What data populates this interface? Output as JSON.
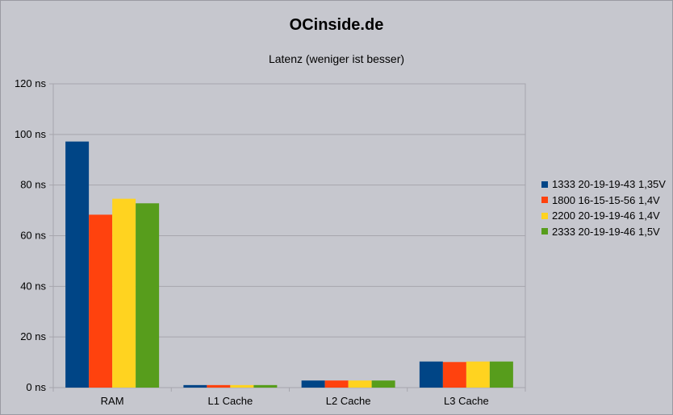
{
  "chart_data": {
    "type": "bar",
    "title": "OCinside.de",
    "subtitle": "Latenz (weniger ist besser)",
    "categories": [
      "RAM",
      "L1 Cache",
      "L2 Cache",
      "L3 Cache"
    ],
    "ylim": [
      0,
      120
    ],
    "yticks": [
      0,
      20,
      40,
      60,
      80,
      100,
      120
    ],
    "ytick_labels": [
      "0 ns",
      "20 ns",
      "40 ns",
      "60 ns",
      "80 ns",
      "100 ns",
      "120 ns"
    ],
    "grid": true,
    "legend_position": "right",
    "series": [
      {
        "name": "1333 20-19-19-43 1,35V",
        "color": "#004586",
        "values": [
          97.2,
          1.0,
          2.8,
          10.3
        ]
      },
      {
        "name": "1800 16-15-15-56 1,4V",
        "color": "#ff420e",
        "values": [
          68.3,
          1.0,
          2.8,
          10.1
        ]
      },
      {
        "name": "2200 20-19-19-46 1,4V",
        "color": "#ffd320",
        "values": [
          74.6,
          1.0,
          2.8,
          10.3
        ]
      },
      {
        "name": "2333 20-19-19-46 1,5V",
        "color": "#579d1c",
        "values": [
          72.8,
          1.0,
          2.8,
          10.3
        ]
      }
    ]
  }
}
